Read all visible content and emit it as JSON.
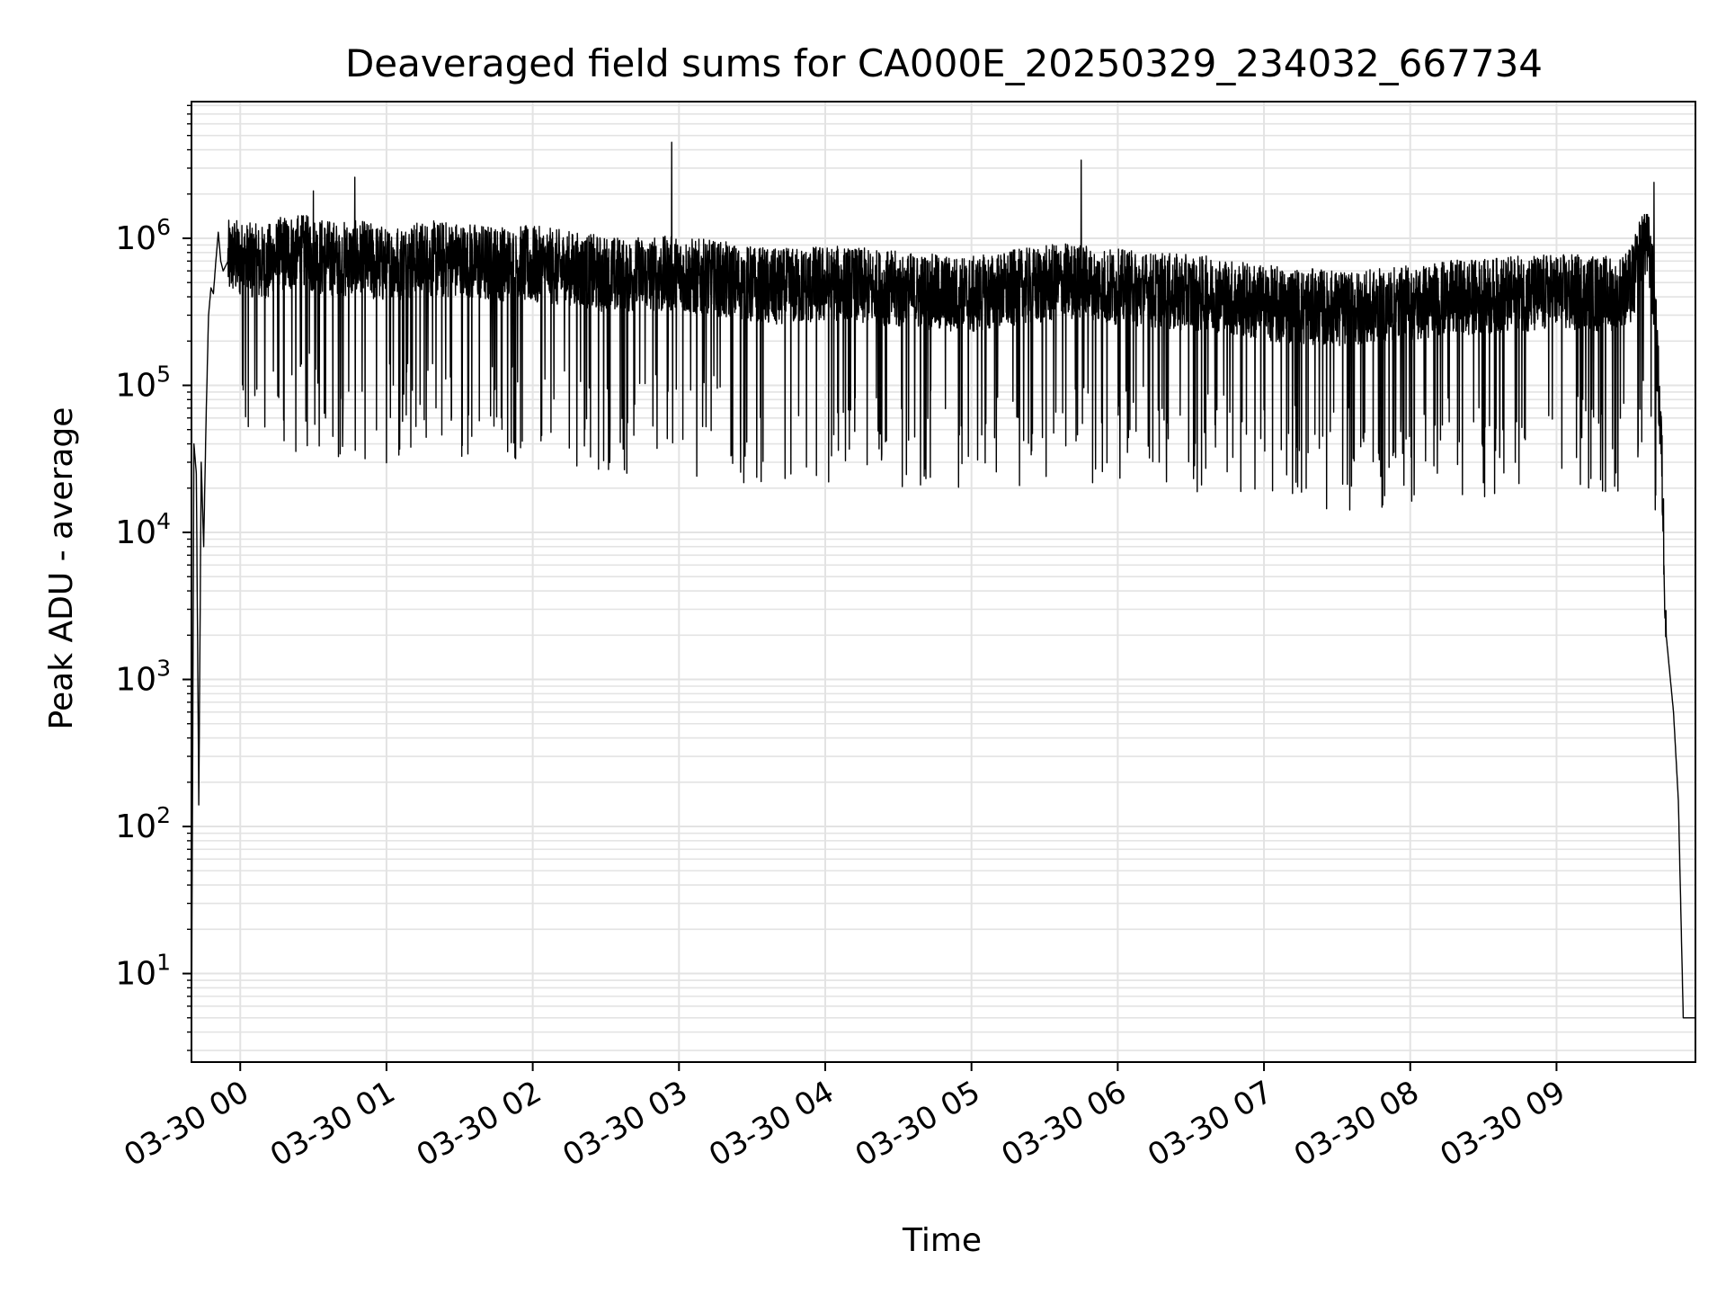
{
  "chart_data": {
    "type": "line",
    "title": "Deaveraged field sums for CA000E_20250329_234032_667734",
    "xlabel": "Time",
    "ylabel": "Peak ADU - average",
    "yscale": "log",
    "xlim": [
      "2025-03-29 23:40",
      "2025-03-30 09:57"
    ],
    "ylim": [
      2.5,
      8500000
    ],
    "grid": true,
    "x_ticks": [
      {
        "t": "2025-03-30 00:00",
        "label": "03-30 00"
      },
      {
        "t": "2025-03-30 01:00",
        "label": "03-30 01"
      },
      {
        "t": "2025-03-30 02:00",
        "label": "03-30 02"
      },
      {
        "t": "2025-03-30 03:00",
        "label": "03-30 03"
      },
      {
        "t": "2025-03-30 04:00",
        "label": "03-30 04"
      },
      {
        "t": "2025-03-30 05:00",
        "label": "03-30 05"
      },
      {
        "t": "2025-03-30 06:00",
        "label": "03-30 06"
      },
      {
        "t": "2025-03-30 07:00",
        "label": "03-30 07"
      },
      {
        "t": "2025-03-30 08:00",
        "label": "03-30 08"
      },
      {
        "t": "2025-03-30 09:00",
        "label": "03-30 09"
      }
    ],
    "y_ticks": [
      {
        "value": 10,
        "base": "10",
        "exp": "1"
      },
      {
        "value": 100,
        "base": "10",
        "exp": "2"
      },
      {
        "value": 1000,
        "base": "10",
        "exp": "3"
      },
      {
        "value": 10000,
        "base": "10",
        "exp": "4"
      },
      {
        "value": 100000,
        "base": "10",
        "exp": "5"
      },
      {
        "value": 1000000,
        "base": "10",
        "exp": "6"
      }
    ],
    "series": [
      {
        "color": "#000000",
        "x": [
          "2025-03-29 23:40",
          "2025-03-29 23:41",
          "2025-03-29 23:42",
          "2025-03-29 23:43",
          "2025-03-29 23:44",
          "2025-03-29 23:45",
          "2025-03-29 23:46",
          "2025-03-29 23:47",
          "2025-03-29 23:48",
          "2025-03-29 23:49",
          "2025-03-29 23:50",
          "2025-03-29 23:51",
          "2025-03-29 23:52",
          "2025-03-29 23:53",
          "2025-03-29 23:55",
          "2025-03-29 23:57",
          "2025-03-30 00:00",
          "2025-03-30 00:10",
          "2025-03-30 00:20",
          "2025-03-30 00:30",
          "2025-03-30 00:40",
          "2025-03-30 00:50",
          "2025-03-30 01:00",
          "2025-03-30 01:15",
          "2025-03-30 01:30",
          "2025-03-30 01:45",
          "2025-03-30 02:00",
          "2025-03-30 02:15",
          "2025-03-30 02:30",
          "2025-03-30 02:45",
          "2025-03-30 03:00",
          "2025-03-30 03:20",
          "2025-03-30 03:40",
          "2025-03-30 04:00",
          "2025-03-30 04:20",
          "2025-03-30 04:40",
          "2025-03-30 05:00",
          "2025-03-30 05:20",
          "2025-03-30 05:40",
          "2025-03-30 06:00",
          "2025-03-30 06:20",
          "2025-03-30 06:40",
          "2025-03-30 07:00",
          "2025-03-30 07:20",
          "2025-03-30 07:40",
          "2025-03-30 08:00",
          "2025-03-30 08:20",
          "2025-03-30 08:40",
          "2025-03-30 09:00",
          "2025-03-30 09:15",
          "2025-03-30 09:25",
          "2025-03-30 09:30",
          "2025-03-30 09:33",
          "2025-03-30 09:35",
          "2025-03-30 09:37",
          "2025-03-30 09:40",
          "2025-03-30 09:43",
          "2025-03-30 09:45",
          "2025-03-30 09:48",
          "2025-03-30 09:50",
          "2025-03-30 09:52",
          "2025-03-30 09:54",
          "2025-03-30 09:56"
        ],
        "y": [
          3,
          40000,
          25000,
          140,
          30000,
          8000,
          60000,
          300000,
          460000,
          420000,
          700000,
          1100000,
          700000,
          600000,
          700000,
          750000,
          700000,
          650000,
          800000,
          750000,
          700000,
          700000,
          650000,
          700000,
          700000,
          650000,
          650000,
          600000,
          550000,
          550000,
          550000,
          500000,
          450000,
          480000,
          450000,
          420000,
          400000,
          450000,
          500000,
          450000,
          420000,
          400000,
          350000,
          330000,
          320000,
          350000,
          380000,
          400000,
          420000,
          410000,
          400000,
          450000,
          600000,
          900000,
          1000000,
          400000,
          40000,
          2000,
          600,
          150,
          5,
          5,
          5
        ]
      }
    ],
    "annotations": {
      "noise_spikes_up": [
        {
          "t": "2025-03-30 00:30",
          "value": 2100000
        },
        {
          "t": "2025-03-30 00:47",
          "value": 2600000
        },
        {
          "t": "2025-03-30 02:57",
          "value": 4500000
        },
        {
          "t": "2025-03-30 05:45",
          "value": 3400000
        },
        {
          "t": "2025-03-30 09:40",
          "value": 2400000
        }
      ],
      "noise_dips_down": [
        {
          "t": "2025-03-30 00:18",
          "value": 42000
        },
        {
          "t": "2025-03-30 00:35",
          "value": 60000
        },
        {
          "t": "2025-03-30 01:10",
          "value": 38000
        },
        {
          "t": "2025-03-30 01:35",
          "value": 45000
        },
        {
          "t": "2025-03-30 04:55",
          "value": 46000
        },
        {
          "t": "2025-03-30 05:25",
          "value": 47000
        },
        {
          "t": "2025-03-30 06:05",
          "value": 50000
        }
      ]
    }
  }
}
